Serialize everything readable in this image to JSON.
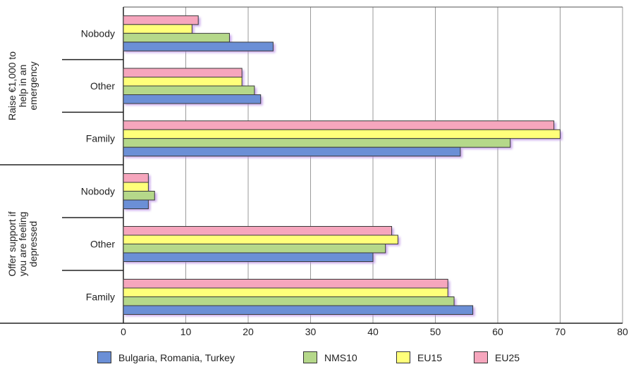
{
  "chart_data": {
    "type": "bar",
    "orientation": "horizontal",
    "groups": [
      {
        "label": "Raise €1,000 to help in an emergency",
        "label_lines": [
          "Raise €1,000 to",
          "help in an",
          "emergency"
        ],
        "categories": [
          "Nobody",
          "Other",
          "Family"
        ]
      },
      {
        "label": "Offer support if you are feeling depressed",
        "label_lines": [
          "Offer support if",
          "you are feeling",
          "depressed"
        ],
        "categories": [
          "Nobody",
          "Other",
          "Family"
        ]
      }
    ],
    "series": [
      {
        "name": "Bulgaria, Romania, Turkey",
        "color": "#6b8fd6",
        "values": [
          24,
          22,
          54,
          4,
          40,
          56
        ]
      },
      {
        "name": "NMS10",
        "color": "#b5d88a",
        "values": [
          17,
          21,
          62,
          5,
          42,
          53
        ]
      },
      {
        "name": "EU15",
        "color": "#ffff7a",
        "values": [
          11,
          19,
          70,
          4,
          44,
          52
        ]
      },
      {
        "name": "EU25",
        "color": "#f6a6bd",
        "values": [
          12,
          19,
          69,
          4,
          43,
          52
        ]
      }
    ],
    "xlim": [
      0,
      80
    ],
    "xticks": [
      0,
      10,
      20,
      30,
      40,
      50,
      60,
      70,
      80
    ],
    "grid": true,
    "legend_position": "bottom"
  }
}
